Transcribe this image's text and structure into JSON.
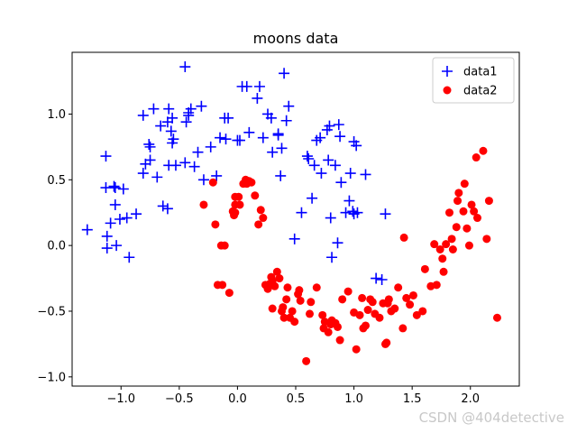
{
  "watermark": "CSDN @404detective",
  "chart_data": {
    "type": "scatter",
    "title": "moons data",
    "xlabel": "",
    "ylabel": "",
    "xlim": [
      -1.42,
      2.42
    ],
    "ylim": [
      -1.07,
      1.47
    ],
    "xticks": [
      -1.0,
      -0.5,
      0.0,
      0.5,
      1.0,
      1.5,
      2.0
    ],
    "xtick_labels": [
      "−1.0",
      "−0.5",
      "0.0",
      "0.5",
      "1.0",
      "1.5",
      "2.0"
    ],
    "yticks": [
      -1.0,
      -0.5,
      0.0,
      0.5,
      1.0
    ],
    "ytick_labels": [
      "−1.0",
      "−0.5",
      "0.0",
      "0.5",
      "1.0"
    ],
    "grid": false,
    "legend_position": "top-right",
    "series": [
      {
        "name": "data1",
        "marker": "plus",
        "color": "#0000ff",
        "points": [
          [
            -1.29,
            0.12
          ],
          [
            -1.13,
            0.68
          ],
          [
            -1.13,
            0.44
          ],
          [
            -1.12,
            0.07
          ],
          [
            -1.12,
            -0.02
          ],
          [
            -1.09,
            0.17
          ],
          [
            -1.06,
            0.45
          ],
          [
            -1.05,
            0.44
          ],
          [
            -1.05,
            0.31
          ],
          [
            -1.04,
            0.0
          ],
          [
            -1.01,
            0.2
          ],
          [
            -0.98,
            0.43
          ],
          [
            -0.95,
            0.21
          ],
          [
            -0.93,
            -0.09
          ],
          [
            -0.87,
            0.24
          ],
          [
            -0.81,
            0.99
          ],
          [
            -0.81,
            0.55
          ],
          [
            -0.79,
            0.62
          ],
          [
            -0.76,
            0.77
          ],
          [
            -0.75,
            0.75
          ],
          [
            -0.75,
            0.65
          ],
          [
            -0.72,
            1.04
          ],
          [
            -0.69,
            0.52
          ],
          [
            -0.66,
            0.91
          ],
          [
            -0.64,
            0.3
          ],
          [
            -0.6,
            0.28
          ],
          [
            -0.6,
            0.94
          ],
          [
            -0.59,
            1.04
          ],
          [
            -0.59,
            0.61
          ],
          [
            -0.57,
            0.87
          ],
          [
            -0.56,
            0.97
          ],
          [
            -0.56,
            0.78
          ],
          [
            -0.55,
            0.81
          ],
          [
            -0.53,
            0.61
          ],
          [
            -0.45,
            1.36
          ],
          [
            -0.45,
            0.63
          ],
          [
            -0.44,
            0.94
          ],
          [
            -0.42,
            1.01
          ],
          [
            -0.42,
            0.99
          ],
          [
            -0.4,
            1.04
          ],
          [
            -0.37,
            0.6
          ],
          [
            -0.34,
            0.71
          ],
          [
            -0.31,
            1.06
          ],
          [
            -0.29,
            0.5
          ],
          [
            -0.23,
            0.75
          ],
          [
            -0.18,
            0.53
          ],
          [
            -0.15,
            0.82
          ],
          [
            -0.11,
            0.97
          ],
          [
            -0.1,
            0.81
          ],
          [
            -0.08,
            0.97
          ],
          [
            0.0,
            0.8
          ],
          [
            0.02,
            0.8
          ],
          [
            0.04,
            1.21
          ],
          [
            0.08,
            1.21
          ],
          [
            0.1,
            0.86
          ],
          [
            0.17,
            1.12
          ],
          [
            0.19,
            1.21
          ],
          [
            0.22,
            0.82
          ],
          [
            0.26,
            1.0
          ],
          [
            0.29,
            0.97
          ],
          [
            0.3,
            0.71
          ],
          [
            0.35,
            0.84
          ],
          [
            0.35,
            0.85
          ],
          [
            0.37,
            0.53
          ],
          [
            0.38,
            0.74
          ],
          [
            0.4,
            1.31
          ],
          [
            0.42,
            0.95
          ],
          [
            0.44,
            1.06
          ],
          [
            0.49,
            0.05
          ],
          [
            0.55,
            0.25
          ],
          [
            0.6,
            0.68
          ],
          [
            0.61,
            0.66
          ],
          [
            0.64,
            0.36
          ],
          [
            0.66,
            0.61
          ],
          [
            0.68,
            0.8
          ],
          [
            0.71,
            0.82
          ],
          [
            0.72,
            0.55
          ],
          [
            0.77,
            0.88
          ],
          [
            0.78,
            0.65
          ],
          [
            0.79,
            0.91
          ],
          [
            0.8,
            0.21
          ],
          [
            0.81,
            -0.09
          ],
          [
            0.84,
            0.61
          ],
          [
            0.86,
            0.02
          ],
          [
            0.87,
            0.92
          ],
          [
            0.88,
            0.83
          ],
          [
            0.89,
            0.48
          ],
          [
            0.93,
            0.25
          ],
          [
            0.96,
            0.34
          ],
          [
            0.97,
            0.55
          ],
          [
            0.99,
            0.26
          ],
          [
            1.0,
            0.24
          ],
          [
            1.0,
            0.79
          ],
          [
            1.02,
            0.76
          ],
          [
            1.03,
            0.25
          ],
          [
            1.1,
            0.54
          ],
          [
            1.19,
            -0.25
          ],
          [
            1.24,
            -0.26
          ],
          [
            1.27,
            0.24
          ]
        ]
      },
      {
        "name": "data2",
        "marker": "circle",
        "color": "#ff0000",
        "points": [
          [
            -0.29,
            0.31
          ],
          [
            -0.21,
            0.48
          ],
          [
            -0.19,
            0.16
          ],
          [
            -0.17,
            -0.3
          ],
          [
            -0.14,
            0.0
          ],
          [
            -0.13,
            -0.3
          ],
          [
            -0.11,
            0.0
          ],
          [
            -0.07,
            -0.36
          ],
          [
            -0.04,
            0.26
          ],
          [
            -0.03,
            0.23
          ],
          [
            -0.02,
            0.25
          ],
          [
            -0.02,
            0.31
          ],
          [
            -0.02,
            0.37
          ],
          [
            0.01,
            0.37
          ],
          [
            0.02,
            0.31
          ],
          [
            0.05,
            0.47
          ],
          [
            0.07,
            0.5
          ],
          [
            0.08,
            0.47
          ],
          [
            0.09,
            0.48
          ],
          [
            0.1,
            0.49
          ],
          [
            0.12,
            0.48
          ],
          [
            0.15,
            0.38
          ],
          [
            0.18,
            0.16
          ],
          [
            0.2,
            0.27
          ],
          [
            0.22,
            0.21
          ],
          [
            0.24,
            -0.3
          ],
          [
            0.26,
            -0.33
          ],
          [
            0.28,
            -0.29
          ],
          [
            0.29,
            -0.24
          ],
          [
            0.3,
            -0.27
          ],
          [
            0.3,
            -0.48
          ],
          [
            0.32,
            -0.31
          ],
          [
            0.34,
            -0.2
          ],
          [
            0.36,
            -0.25
          ],
          [
            0.38,
            -0.5
          ],
          [
            0.39,
            -0.47
          ],
          [
            0.4,
            -0.55
          ],
          [
            0.42,
            -0.41
          ],
          [
            0.43,
            -0.32
          ],
          [
            0.45,
            -0.55
          ],
          [
            0.47,
            -0.5
          ],
          [
            0.49,
            -0.58
          ],
          [
            0.52,
            -0.37
          ],
          [
            0.53,
            -0.34
          ],
          [
            0.54,
            -0.42
          ],
          [
            0.59,
            -0.88
          ],
          [
            0.62,
            -0.52
          ],
          [
            0.63,
            -0.43
          ],
          [
            0.68,
            -0.32
          ],
          [
            0.73,
            -0.53
          ],
          [
            0.74,
            -0.63
          ],
          [
            0.75,
            -0.58
          ],
          [
            0.78,
            -0.66
          ],
          [
            0.8,
            -0.6
          ],
          [
            0.81,
            -0.57
          ],
          [
            0.84,
            -0.59
          ],
          [
            0.86,
            -0.62
          ],
          [
            0.88,
            -0.72
          ],
          [
            0.9,
            -0.41
          ],
          [
            0.95,
            -0.35
          ],
          [
            1.0,
            -0.51
          ],
          [
            1.02,
            -0.79
          ],
          [
            1.05,
            -0.53
          ],
          [
            1.07,
            -0.4
          ],
          [
            1.08,
            -0.63
          ],
          [
            1.1,
            -0.61
          ],
          [
            1.12,
            -0.49
          ],
          [
            1.14,
            -0.41
          ],
          [
            1.16,
            -0.43
          ],
          [
            1.18,
            -0.52
          ],
          [
            1.22,
            -0.55
          ],
          [
            1.25,
            -0.44
          ],
          [
            1.27,
            -0.75
          ],
          [
            1.28,
            -0.74
          ],
          [
            1.29,
            -0.44
          ],
          [
            1.3,
            -0.41
          ],
          [
            1.32,
            -0.5
          ],
          [
            1.35,
            -0.48
          ],
          [
            1.38,
            -0.32
          ],
          [
            1.42,
            -0.63
          ],
          [
            1.43,
            0.06
          ],
          [
            1.45,
            -0.4
          ],
          [
            1.48,
            -0.45
          ],
          [
            1.51,
            -0.38
          ],
          [
            1.54,
            -0.53
          ],
          [
            1.59,
            -0.5
          ],
          [
            1.61,
            -0.18
          ],
          [
            1.66,
            -0.31
          ],
          [
            1.69,
            0.01
          ],
          [
            1.71,
            -0.3
          ],
          [
            1.74,
            -0.03
          ],
          [
            1.76,
            -0.1
          ],
          [
            1.77,
            -0.2
          ],
          [
            1.79,
            0.01
          ],
          [
            1.82,
            0.25
          ],
          [
            1.84,
            0.05
          ],
          [
            1.85,
            -0.03
          ],
          [
            1.88,
            0.14
          ],
          [
            1.89,
            0.34
          ],
          [
            1.9,
            0.4
          ],
          [
            1.94,
            0.26
          ],
          [
            1.95,
            0.47
          ],
          [
            1.97,
            0.13
          ],
          [
            1.99,
            0.0
          ],
          [
            2.01,
            0.31
          ],
          [
            2.03,
            0.26
          ],
          [
            2.05,
            0.67
          ],
          [
            2.06,
            0.21
          ],
          [
            2.11,
            0.72
          ],
          [
            2.14,
            0.05
          ],
          [
            2.16,
            0.34
          ],
          [
            2.23,
            -0.55
          ]
        ]
      }
    ]
  }
}
